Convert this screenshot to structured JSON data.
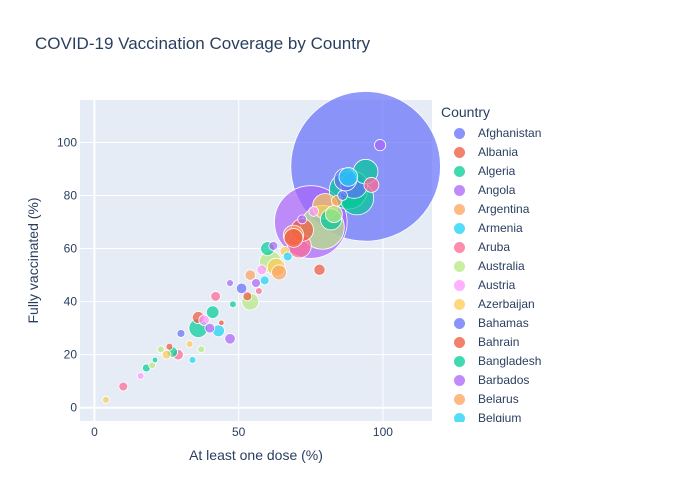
{
  "chart_data": {
    "type": "scatter",
    "title": "COVID-19 Vaccination Coverage by Country",
    "xlabel": "At least one dose (%)",
    "ylabel": "Fully vaccinated (%)",
    "xlim": [
      -5,
      117
    ],
    "ylim": [
      -5,
      116
    ],
    "x_ticks": [
      0,
      50,
      100
    ],
    "y_ticks": [
      0,
      20,
      40,
      60,
      80,
      100
    ],
    "grid": true,
    "legend_title": "Country",
    "legend_placement": "right",
    "bubble_sized_by": "population",
    "points": [
      {
        "x": 94,
        "y": 91,
        "size": 1400,
        "color": "#636efa"
      },
      {
        "x": 75,
        "y": 70,
        "size": 330,
        "color": "#ab63fa"
      },
      {
        "x": 79,
        "y": 68,
        "size": 120,
        "color": "#b6e880"
      },
      {
        "x": 88,
        "y": 82,
        "size": 90,
        "color": "#00cc96"
      },
      {
        "x": 91,
        "y": 79,
        "size": 70,
        "color": "#00cc96"
      },
      {
        "x": 90,
        "y": 84,
        "size": 45,
        "color": "#636efa"
      },
      {
        "x": 94,
        "y": 89,
        "size": 38,
        "color": "#00cc96"
      },
      {
        "x": 80,
        "y": 76,
        "size": 40,
        "color": "#fecb52"
      },
      {
        "x": 71,
        "y": 61,
        "size": 36,
        "color": "#ff6692"
      },
      {
        "x": 72,
        "y": 67,
        "size": 32,
        "color": "#ef553b"
      },
      {
        "x": 69,
        "y": 65,
        "size": 26,
        "color": "#ffa15a"
      },
      {
        "x": 69,
        "y": 64,
        "size": 22,
        "color": "#ef553b"
      },
      {
        "x": 82,
        "y": 71,
        "size": 28,
        "color": "#00cc96"
      },
      {
        "x": 87,
        "y": 86,
        "size": 32,
        "color": "#636efa"
      },
      {
        "x": 88,
        "y": 87,
        "size": 22,
        "color": "#19d3f3"
      },
      {
        "x": 96,
        "y": 84,
        "size": 14,
        "color": "#ff6692"
      },
      {
        "x": 83,
        "y": 73,
        "size": 18,
        "color": "#b6e880"
      },
      {
        "x": 61,
        "y": 55,
        "size": 30,
        "color": "#b6e880"
      },
      {
        "x": 63,
        "y": 53,
        "size": 20,
        "color": "#fecb52"
      },
      {
        "x": 64,
        "y": 51,
        "size": 14,
        "color": "#ffa15a"
      },
      {
        "x": 54,
        "y": 40,
        "size": 18,
        "color": "#b6e880"
      },
      {
        "x": 60,
        "y": 60,
        "size": 12,
        "color": "#00cc96"
      },
      {
        "x": 36,
        "y": 30,
        "size": 22,
        "color": "#00cc96"
      },
      {
        "x": 78,
        "y": 52,
        "size": 8,
        "color": "#ef553b"
      },
      {
        "x": 99,
        "y": 99,
        "size": 8,
        "color": "#ab63fa"
      },
      {
        "x": 41,
        "y": 36,
        "size": 10,
        "color": "#00cc96"
      },
      {
        "x": 36,
        "y": 34,
        "size": 9,
        "color": "#ef553b"
      },
      {
        "x": 43,
        "y": 29,
        "size": 9,
        "color": "#19d3f3"
      },
      {
        "x": 38,
        "y": 33,
        "size": 7,
        "color": "#ff97ff"
      },
      {
        "x": 40,
        "y": 30,
        "size": 6,
        "color": "#ab63fa"
      },
      {
        "x": 47,
        "y": 26,
        "size": 7,
        "color": "#ab63fa"
      },
      {
        "x": 42,
        "y": 42,
        "size": 6,
        "color": "#ff6692"
      },
      {
        "x": 51,
        "y": 45,
        "size": 7,
        "color": "#636efa"
      },
      {
        "x": 54,
        "y": 50,
        "size": 7,
        "color": "#ffa15a"
      },
      {
        "x": 56,
        "y": 47,
        "size": 5,
        "color": "#ab63fa"
      },
      {
        "x": 53,
        "y": 42,
        "size": 5,
        "color": "#ef553b"
      },
      {
        "x": 58,
        "y": 52,
        "size": 6,
        "color": "#ff97ff"
      },
      {
        "x": 59,
        "y": 48,
        "size": 5,
        "color": "#19d3f3"
      },
      {
        "x": 62,
        "y": 61,
        "size": 5,
        "color": "#ab63fa"
      },
      {
        "x": 66,
        "y": 59,
        "size": 6,
        "color": "#fecb52"
      },
      {
        "x": 67,
        "y": 57,
        "size": 5,
        "color": "#19d3f3"
      },
      {
        "x": 29,
        "y": 20,
        "size": 7,
        "color": "#ff6692"
      },
      {
        "x": 27,
        "y": 21,
        "size": 7,
        "color": "#00cc96"
      },
      {
        "x": 25,
        "y": 20,
        "size": 5,
        "color": "#fecb52"
      },
      {
        "x": 30,
        "y": 28,
        "size": 4,
        "color": "#636efa"
      },
      {
        "x": 18,
        "y": 15,
        "size": 4,
        "color": "#00cc96"
      },
      {
        "x": 10,
        "y": 8,
        "size": 5,
        "color": "#ff6692"
      },
      {
        "x": 20,
        "y": 16,
        "size": 3,
        "color": "#b6e880"
      },
      {
        "x": 23,
        "y": 22,
        "size": 3,
        "color": "#b6e880"
      },
      {
        "x": 26,
        "y": 23,
        "size": 3,
        "color": "#ef553b"
      },
      {
        "x": 33,
        "y": 24,
        "size": 3,
        "color": "#fecb52"
      },
      {
        "x": 47,
        "y": 47,
        "size": 3,
        "color": "#ab63fa"
      },
      {
        "x": 57,
        "y": 44,
        "size": 3,
        "color": "#ff6692"
      },
      {
        "x": 4,
        "y": 3,
        "size": 3,
        "color": "#fecb52"
      },
      {
        "x": 16,
        "y": 12,
        "size": 3,
        "color": "#ff97ff"
      },
      {
        "x": 21,
        "y": 18,
        "size": 2,
        "color": "#00cc96"
      },
      {
        "x": 34,
        "y": 18,
        "size": 3,
        "color": "#19d3f3"
      },
      {
        "x": 37,
        "y": 22,
        "size": 3,
        "color": "#b6e880"
      },
      {
        "x": 44,
        "y": 32,
        "size": 2,
        "color": "#ef553b"
      },
      {
        "x": 48,
        "y": 39,
        "size": 3,
        "color": "#00cc96"
      },
      {
        "x": 72,
        "y": 71,
        "size": 5,
        "color": "#ab63fa"
      },
      {
        "x": 76,
        "y": 74,
        "size": 6,
        "color": "#ff97ff"
      },
      {
        "x": 84,
        "y": 78,
        "size": 7,
        "color": "#ffa15a"
      },
      {
        "x": 86,
        "y": 80,
        "size": 6,
        "color": "#636efa"
      }
    ]
  },
  "legend": {
    "title": "Country",
    "items": [
      {
        "label": "Afghanistan",
        "color": "#636efa"
      },
      {
        "label": "Albania",
        "color": "#ef553b"
      },
      {
        "label": "Algeria",
        "color": "#00cc96"
      },
      {
        "label": "Angola",
        "color": "#ab63fa"
      },
      {
        "label": "Argentina",
        "color": "#ffa15a"
      },
      {
        "label": "Armenia",
        "color": "#19d3f3"
      },
      {
        "label": "Aruba",
        "color": "#ff6692"
      },
      {
        "label": "Australia",
        "color": "#b6e880"
      },
      {
        "label": "Austria",
        "color": "#ff97ff"
      },
      {
        "label": "Azerbaijan",
        "color": "#fecb52"
      },
      {
        "label": "Bahamas",
        "color": "#636efa"
      },
      {
        "label": "Bahrain",
        "color": "#ef553b"
      },
      {
        "label": "Bangladesh",
        "color": "#00cc96"
      },
      {
        "label": "Barbados",
        "color": "#ab63fa"
      },
      {
        "label": "Belarus",
        "color": "#ffa15a"
      },
      {
        "label": "Belgium",
        "color": "#19d3f3"
      }
    ]
  }
}
